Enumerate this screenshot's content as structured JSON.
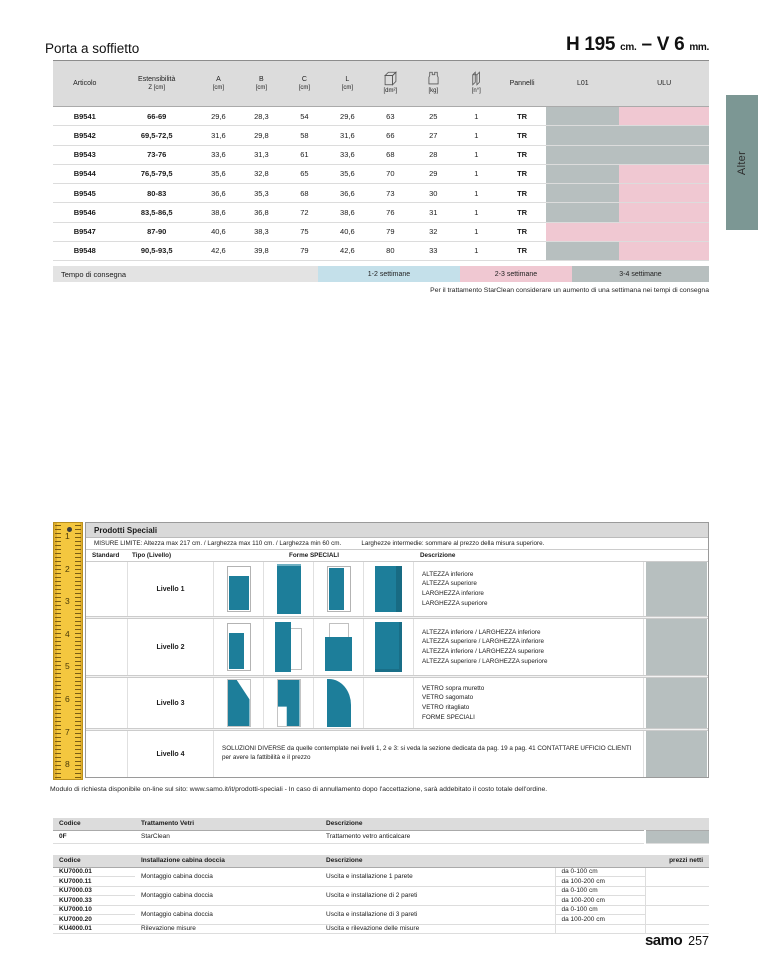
{
  "page": {
    "title": "Porta a soffietto",
    "dim_h": "H 195",
    "dim_h_unit": "cm.",
    "dim_sep": "–",
    "dim_v": "V 6",
    "dim_v_unit": "mm.",
    "side_tab": "Alter",
    "footer_brand": "samo",
    "footer_page": "257"
  },
  "colors": {
    "gray_cell": "#b7bfbf",
    "pink_cell": "#f0c8d2",
    "blue_cell": "#c4e0ea",
    "teal_shape": "#1d7e9a",
    "tab_teal": "#7c9794",
    "ruler_yellow": "#f4c73f"
  },
  "main_table": {
    "headers": {
      "articolo": "Articolo",
      "estensibilita_1": "Estensibilità",
      "estensibilita_2": "Z [cm]",
      "a": "A",
      "b": "B",
      "c": "C",
      "l": "L",
      "cm_unit": "[cm]",
      "dm2": "[dm²]",
      "kg": "[kg]",
      "n": "[n°]",
      "pannelli": "Pannelli",
      "l01": "L01",
      "ulu": "ULU"
    },
    "rows": [
      {
        "articolo": "B9541",
        "estensibilita": "66-69",
        "a": "29,6",
        "b": "28,3",
        "c": "54",
        "l": "29,6",
        "dm2": "63",
        "kg": "25",
        "n": "1",
        "pannelli": "TR",
        "l01": "gray",
        "ulu": "pink"
      },
      {
        "articolo": "B9542",
        "estensibilita": "69,5-72,5",
        "a": "31,6",
        "b": "29,8",
        "c": "58",
        "l": "31,6",
        "dm2": "66",
        "kg": "27",
        "n": "1",
        "pannelli": "TR",
        "l01": "gray",
        "ulu": "gray"
      },
      {
        "articolo": "B9543",
        "estensibilita": "73-76",
        "a": "33,6",
        "b": "31,3",
        "c": "61",
        "l": "33,6",
        "dm2": "68",
        "kg": "28",
        "n": "1",
        "pannelli": "TR",
        "l01": "gray",
        "ulu": "gray"
      },
      {
        "articolo": "B9544",
        "estensibilita": "76,5-79,5",
        "a": "35,6",
        "b": "32,8",
        "c": "65",
        "l": "35,6",
        "dm2": "70",
        "kg": "29",
        "n": "1",
        "pannelli": "TR",
        "l01": "gray",
        "ulu": "pink"
      },
      {
        "articolo": "B9545",
        "estensibilita": "80-83",
        "a": "36,6",
        "b": "35,3",
        "c": "68",
        "l": "36,6",
        "dm2": "73",
        "kg": "30",
        "n": "1",
        "pannelli": "TR",
        "l01": "gray",
        "ulu": "pink"
      },
      {
        "articolo": "B9546",
        "estensibilita": "83,5-86,5",
        "a": "38,6",
        "b": "36,8",
        "c": "72",
        "l": "38,6",
        "dm2": "76",
        "kg": "31",
        "n": "1",
        "pannelli": "TR",
        "l01": "gray",
        "ulu": "pink"
      },
      {
        "articolo": "B9547",
        "estensibilita": "87-90",
        "a": "40,6",
        "b": "38,3",
        "c": "75",
        "l": "40,6",
        "dm2": "79",
        "kg": "32",
        "n": "1",
        "pannelli": "TR",
        "l01": "pink",
        "ulu": "pink"
      },
      {
        "articolo": "B9548",
        "estensibilita": "90,5-93,5",
        "a": "42,6",
        "b": "39,8",
        "c": "79",
        "l": "42,6",
        "dm2": "80",
        "kg": "33",
        "n": "1",
        "pannelli": "TR",
        "l01": "gray",
        "ulu": "pink"
      }
    ],
    "tempo_label": "Tempo di consegna",
    "tempo_slots": [
      {
        "label": "1-2 settimane",
        "color": "#c4e0ea"
      },
      {
        "label": "2-3 settimane",
        "color": "#f0c8d2"
      },
      {
        "label": "3-4 settimane",
        "color": "#b7bfbf"
      }
    ],
    "delivery_note": "Per il trattamento StarClean considerare un aumento di una settimana nei tempi di consegna"
  },
  "prodotti": {
    "title": "Prodotti Speciali",
    "misure_limite": "MISURE LIMITE: Altezza max 217 cm. / Larghezza max 110 cm. / Larghezza min 60 cm.",
    "misure_note": "Larghezze intermedie: sommare al prezzo della misura superiore.",
    "col_standard": "Standard",
    "col_tipo": "Tipo (Livello)",
    "col_forme": "Forme SPECIALI",
    "col_descrizione": "Descrizione",
    "ruler_numbers": [
      "1",
      "2",
      "3",
      "4",
      "5",
      "6",
      "7",
      "8"
    ],
    "livelli": [
      {
        "label": "Livello 1",
        "shapes": [
          "altezza-inferiore",
          "altezza-superiore",
          "larghezza-inferiore",
          "larghezza-superiore"
        ],
        "desc": [
          "ALTEZZA inferiore",
          "ALTEZZA superiore",
          "LARGHEZZA inferiore",
          "LARGHEZZA superiore"
        ]
      },
      {
        "label": "Livello 2",
        "shapes": [
          "altezza-inf-larghezza-inf",
          "altezza-sup-larghezza-inf",
          "altezza-inf-larghezza-sup",
          "altezza-sup-larghezza-sup"
        ],
        "desc": [
          "ALTEZZA inferiore / LARGHEZZA inferiore",
          "ALTEZZA superiore / LARGHEZZA inferiore",
          "ALTEZZA inferiore / LARGHEZZA superiore",
          "ALTEZZA superiore / LARGHEZZA superiore"
        ]
      },
      {
        "label": "Livello 3",
        "shapes": [
          "vetro-sopra-muretto",
          "vetro-sagomato",
          "vetro-ritagliato",
          null
        ],
        "desc": [
          "VETRO sopra muretto",
          "VETRO sagomato",
          "VETRO ritagliato",
          "FORME SPECIALI"
        ]
      },
      {
        "label": "Livello 4",
        "shapes": [],
        "testo": "SOLUZIONI DIVERSE da quelle contemplate nei livelli 1, 2 e 3: si veda la sezione dedicata da pag. 19 a pag. 41 CONTATTARE UFFICIO CLIENTI per avere la fattibilità e il prezzo"
      }
    ]
  },
  "modulo_note": "Modulo di richiesta disponibile on-line sul sito: www.samo.it/it/prodotti-speciali - In caso di annullamento dopo l'accettazione, sarà addebitato il costo totale dell'ordine.",
  "trattamento_table": {
    "headers": {
      "codice": "Codice",
      "trattamento": "Trattamento Vetri",
      "descrizione": "Descrizione"
    },
    "row": {
      "codice": "0F",
      "trattamento": "StarClean",
      "descrizione": "Trattamento vetro anticalcare"
    }
  },
  "installazione_table": {
    "headers": {
      "codice": "Codice",
      "installazione": "Installazione cabina doccia",
      "descrizione": "Descrizione",
      "prezzi": "prezzi netti"
    },
    "rows": [
      {
        "codici": [
          "KU7000.01",
          "KU7000.11"
        ],
        "installazione": "Montaggio cabina doccia",
        "descrizione": "Uscita e installazione 1 parete",
        "ranges": [
          "da 0-100 cm",
          "da 100-200 cm"
        ]
      },
      {
        "codici": [
          "KU7000.03",
          "KU7000.33"
        ],
        "installazione": "Montaggio cabina doccia",
        "descrizione": "Uscita e installazione di 2 pareti",
        "ranges": [
          "da 0-100 cm",
          "da 100-200 cm"
        ]
      },
      {
        "codici": [
          "KU7000.10",
          "KU7000.20"
        ],
        "installazione": "Montaggio cabina doccia",
        "descrizione": "Uscita e installazione di 3 pareti",
        "ranges": [
          "da 0-100 cm",
          "da 100-200 cm"
        ]
      },
      {
        "codici": [
          "KU4000.01"
        ],
        "installazione": "Rilevazione misure",
        "descrizione": "Uscita e rilevazione delle misure",
        "ranges": [
          ""
        ]
      }
    ]
  }
}
